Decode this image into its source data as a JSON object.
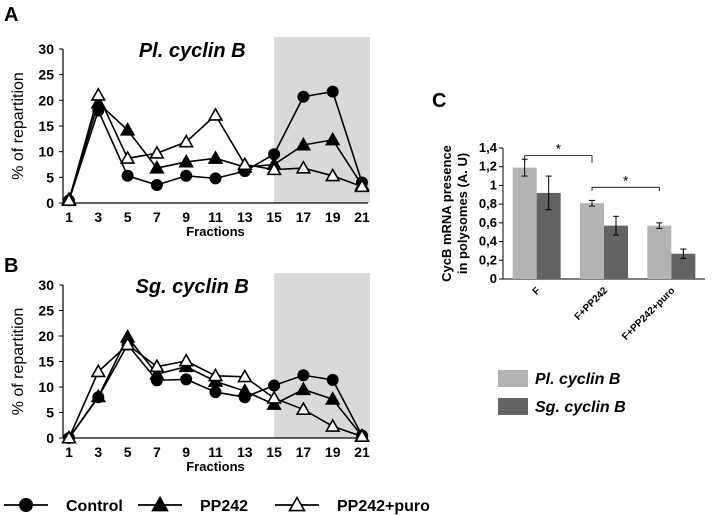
{
  "chart_data": [
    {
      "panel": "A",
      "type": "line",
      "title": "Pl. cyclin B",
      "xlabel": "Fractions",
      "ylabel": "% of repartition",
      "x": [
        1,
        3,
        5,
        7,
        9,
        11,
        13,
        15,
        17,
        19,
        21
      ],
      "ylim": [
        0,
        30
      ],
      "yticks": [
        0,
        5,
        10,
        15,
        20,
        25,
        30
      ],
      "shaded_range": [
        15,
        21
      ],
      "series": [
        {
          "name": "Control",
          "marker": "filled-circle",
          "values": [
            0.5,
            18,
            5.3,
            3.5,
            5.3,
            4.8,
            6.2,
            9.5,
            20.7,
            21.7,
            4
          ]
        },
        {
          "name": "PP242",
          "marker": "filled-triangle",
          "values": [
            0.7,
            19.5,
            14.2,
            6.8,
            8,
            8.7,
            7,
            7.5,
            11.3,
            12.3,
            3.5
          ]
        },
        {
          "name": "PP242+puro",
          "marker": "open-triangle",
          "values": [
            0.5,
            21,
            8.7,
            9.7,
            11.9,
            17.1,
            7.5,
            6.5,
            6.8,
            5.3,
            3.2
          ]
        }
      ]
    },
    {
      "panel": "B",
      "type": "line",
      "title": "Sg. cyclin B",
      "xlabel": "Fractions",
      "ylabel": "% of repartition",
      "x": [
        1,
        3,
        5,
        7,
        9,
        11,
        13,
        15,
        17,
        19,
        21
      ],
      "ylim": [
        0,
        30
      ],
      "yticks": [
        0,
        5,
        10,
        15,
        20,
        25,
        30
      ],
      "shaded_range": [
        15,
        21
      ],
      "series": [
        {
          "name": "Control",
          "marker": "filled-circle",
          "values": [
            0,
            8,
            18.3,
            11.3,
            11.5,
            9,
            8,
            10.3,
            12.3,
            11.4,
            0.5
          ]
        },
        {
          "name": "PP242",
          "marker": "filled-triangle",
          "values": [
            0,
            8.1,
            19.8,
            12.5,
            14,
            11.1,
            9.2,
            6.6,
            9.5,
            7.6,
            0.4
          ]
        },
        {
          "name": "PP242+puro",
          "marker": "open-triangle",
          "values": [
            0,
            13,
            18.3,
            14,
            15.1,
            12.2,
            12,
            7.8,
            5.6,
            2.3,
            0.3
          ]
        }
      ]
    },
    {
      "panel": "C",
      "type": "bar",
      "ylabel": "CycB mRNA presence in polysomes (A. U)",
      "ylabel_lines": [
        "CycB mRNA presence",
        "in polysomes (A. U)"
      ],
      "categories": [
        "F",
        "F+PP242",
        "F+PP242+puro"
      ],
      "ylim": [
        0,
        1.4
      ],
      "yticks": [
        "0",
        "0,2",
        "0,4",
        "0,6",
        "0,8",
        "1",
        "1,2",
        "1,4"
      ],
      "series": [
        {
          "name": "Pl. cyclin B",
          "color": "#b3b3b3",
          "values": [
            1.19,
            0.81,
            0.57
          ],
          "errors": [
            0.09,
            0.03,
            0.03
          ]
        },
        {
          "name": "Sg. cyclin B",
          "color": "#636363",
          "values": [
            0.92,
            0.57,
            0.27
          ],
          "errors": [
            0.18,
            0.1,
            0.05
          ]
        }
      ],
      "significance": [
        {
          "from": "F",
          "to": "F+PP242",
          "label": "*"
        },
        {
          "from": "F+PP242",
          "to": "F+PP242+puro",
          "label": "*"
        }
      ],
      "legend": "bottom"
    }
  ],
  "panel_labels": [
    "A",
    "B",
    "C"
  ],
  "legend": {
    "items": [
      {
        "label": "Control",
        "marker": "filled-circle"
      },
      {
        "label": "PP242",
        "marker": "filled-triangle"
      },
      {
        "label": "PP242+puro",
        "marker": "open-triangle"
      }
    ]
  },
  "colors": {
    "shade": "#d9d9d9",
    "line": "#000000"
  }
}
